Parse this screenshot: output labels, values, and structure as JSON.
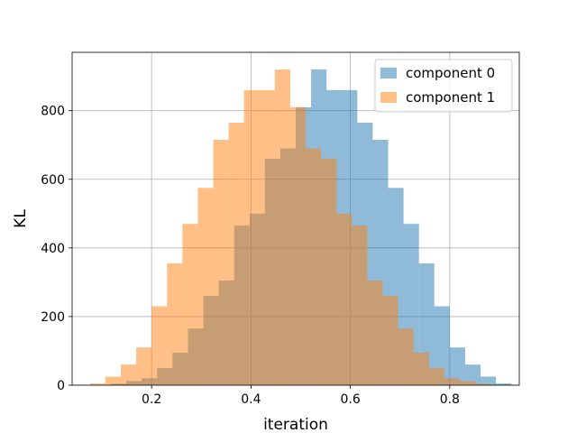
{
  "chart_data": {
    "type": "histogram",
    "title": "",
    "xlabel": "iteration",
    "ylabel": "KL",
    "xlim": [
      0.04,
      0.94
    ],
    "ylim": [
      0,
      970
    ],
    "xticks": [
      0.2,
      0.4,
      0.6,
      0.8
    ],
    "xtick_labels": [
      "0.2",
      "0.4",
      "0.6",
      "0.8"
    ],
    "yticks": [
      0,
      200,
      400,
      600,
      800
    ],
    "ytick_labels": [
      "0",
      "200",
      "400",
      "600",
      "800"
    ],
    "grid": true,
    "legend_position": "top-right",
    "alpha": 0.5,
    "series": [
      {
        "name": "component 0",
        "color": "#1f77b4",
        "bin_edges": [
          0.118,
          0.149,
          0.18,
          0.211,
          0.242,
          0.273,
          0.304,
          0.335,
          0.366,
          0.397,
          0.428,
          0.459,
          0.49,
          0.521,
          0.552,
          0.583,
          0.614,
          0.645,
          0.676,
          0.707,
          0.738,
          0.769,
          0.8,
          0.831,
          0.862,
          0.893,
          0.924
        ],
        "counts": [
          4,
          12,
          20,
          50,
          95,
          165,
          260,
          305,
          465,
          500,
          660,
          690,
          810,
          920,
          860,
          860,
          765,
          715,
          575,
          470,
          355,
          230,
          110,
          60,
          25,
          5
        ]
      },
      {
        "name": "component 1",
        "color": "#ff7f0e",
        "bin_edges": [
          0.076,
          0.107,
          0.138,
          0.169,
          0.2,
          0.231,
          0.262,
          0.293,
          0.324,
          0.355,
          0.386,
          0.417,
          0.448,
          0.479,
          0.51,
          0.541,
          0.572,
          0.603,
          0.634,
          0.665,
          0.696,
          0.727,
          0.758,
          0.789,
          0.82,
          0.851,
          0.882
        ],
        "counts": [
          5,
          25,
          60,
          110,
          230,
          355,
          470,
          575,
          715,
          765,
          860,
          860,
          920,
          810,
          690,
          660,
          500,
          465,
          305,
          260,
          165,
          95,
          50,
          20,
          12,
          4
        ]
      }
    ]
  }
}
